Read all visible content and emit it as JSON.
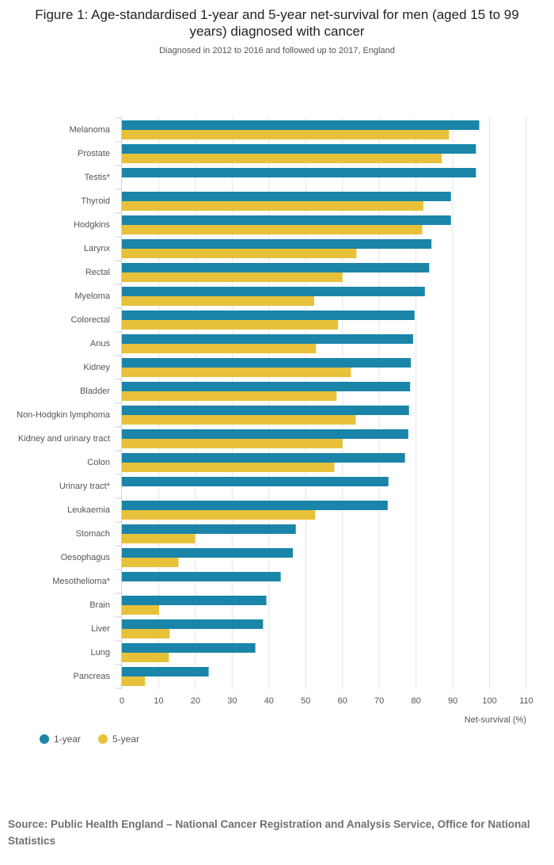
{
  "title": "Figure 1: Age-standardised 1-year and 5-year net-survival for men (aged 15 to 99 years) diagnosed with cancer",
  "subtitle": "Diagnosed in 2012 to 2016 and followed up to 2017, England",
  "source": "Source: Public Health England – National Cancer Registration and Analysis Service, Office for National Statistics",
  "chart_data": {
    "type": "bar",
    "orientation": "horizontal",
    "categories": [
      "Melanoma",
      "Prostate",
      "Testis*",
      "Thyroid",
      "Hodgkins",
      "Larynx",
      "Rectal",
      "Myeloma",
      "Colorectal",
      "Anus",
      "Kidney",
      "Bladder",
      "Non-Hodgkin lymphoma",
      "Kidney and urinary tract",
      "Colon",
      "Urinary tract*",
      "Leukaemia",
      "Stomach",
      "Oesophagus",
      "Mesothelioma*",
      "Brain",
      "Liver",
      "Lung",
      "Pancreas"
    ],
    "series": [
      {
        "name": "1-year",
        "color": "#1a85a8",
        "values": [
          97.2,
          96.3,
          96.3,
          89.5,
          89.5,
          84.2,
          83.6,
          82.4,
          79.6,
          79.2,
          78.6,
          78.4,
          78.1,
          77.9,
          77.0,
          72.5,
          72.3,
          47.3,
          46.5,
          43.2,
          39.3,
          38.4,
          36.3,
          23.6
        ]
      },
      {
        "name": "5-year",
        "color": "#e8c13b",
        "values": [
          89.0,
          87.0,
          null,
          82.0,
          81.7,
          63.8,
          60.0,
          52.3,
          58.8,
          52.8,
          62.3,
          58.4,
          63.6,
          60.0,
          57.8,
          null,
          52.6,
          19.9,
          15.4,
          null,
          10.1,
          13.0,
          12.8,
          6.3
        ]
      }
    ],
    "xlabel": "Net-survival (%)",
    "xlim": [
      0,
      110
    ],
    "xticks": [
      0,
      10,
      20,
      30,
      40,
      50,
      60,
      70,
      80,
      90,
      100,
      110
    ],
    "grid": true,
    "legend_position": "bottom-left"
  }
}
